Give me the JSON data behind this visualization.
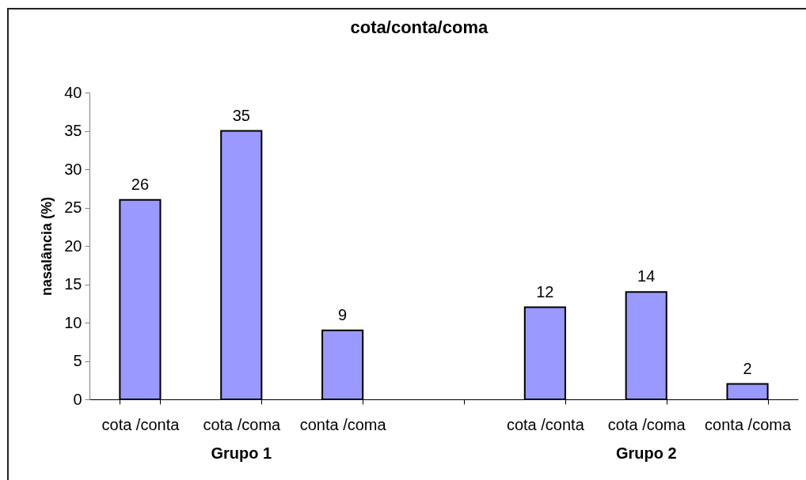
{
  "chart_data": {
    "type": "bar",
    "title": "cota/conta/coma",
    "ylabel": "nasalância (%)",
    "categories": [
      "cota /conta",
      "cota /coma",
      "conta /coma",
      null,
      "cota /conta",
      "cota /coma",
      "conta /coma"
    ],
    "values": [
      26,
      35,
      9,
      null,
      12,
      14,
      2
    ],
    "color": "#9999ff",
    "ylim": [
      0,
      40
    ],
    "yticks": [
      0,
      5,
      10,
      15,
      20,
      25,
      30,
      35,
      40
    ],
    "data_labels": true,
    "annotations": [
      "Grupo 1",
      "Grupo 2"
    ]
  }
}
